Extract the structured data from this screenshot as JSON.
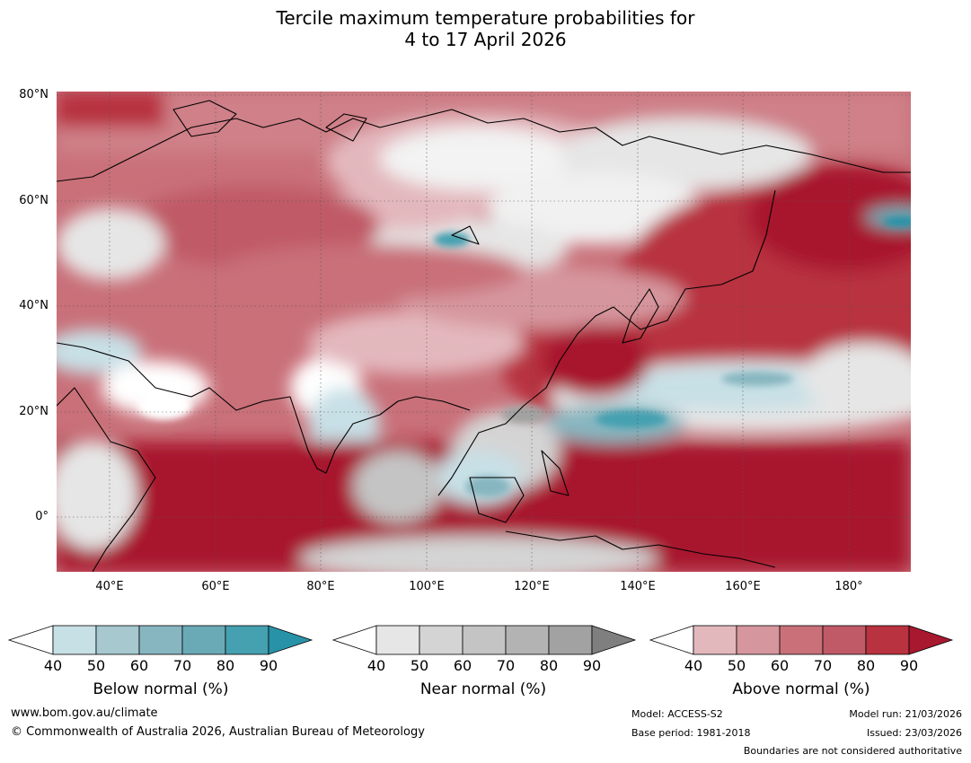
{
  "title": {
    "line1": "Tercile maximum temperature probabilities for",
    "line2": "4 to 17 April 2026"
  },
  "axes": {
    "lat_ticks": [
      "80°N",
      "60°N",
      "40°N",
      "20°N",
      "0°"
    ],
    "lon_ticks": [
      "40°E",
      "60°E",
      "80°E",
      "100°E",
      "120°E",
      "140°E",
      "160°E",
      "180°"
    ],
    "lon_range": [
      30,
      191
    ],
    "lat_range": [
      -10,
      81
    ]
  },
  "colorbars": [
    {
      "key": "below",
      "label": "Below normal (%)",
      "ticks": [
        "40",
        "50",
        "60",
        "70",
        "80",
        "90"
      ],
      "colors": [
        "#ffffff",
        "#c7e0e6",
        "#a6c8ce",
        "#87b6c0",
        "#6aaab6",
        "#45a0b0",
        "#2893a8"
      ]
    },
    {
      "key": "near",
      "label": "Near normal (%)",
      "ticks": [
        "40",
        "50",
        "60",
        "70",
        "80",
        "90"
      ],
      "colors": [
        "#ffffff",
        "#e6e6e6",
        "#d4d4d4",
        "#c4c4c4",
        "#b3b3b3",
        "#a2a2a2",
        "#7f7f7f"
      ]
    },
    {
      "key": "above",
      "label": "Above normal (%)",
      "ticks": [
        "40",
        "50",
        "60",
        "70",
        "80",
        "90"
      ],
      "colors": [
        "#ffffff",
        "#e3b8bd",
        "#d6969d",
        "#c97079",
        "#c05a66",
        "#b8323f",
        "#a8182e"
      ]
    }
  ],
  "footer": {
    "url": "www.bom.gov.au/climate",
    "copyright": "© Commonwealth of Australia 2026, Australian Bureau of Meteorology",
    "model": "Model: ACCESS-S2",
    "base_period": "Base period: 1981-2018",
    "model_run": "Model run: 21/03/2026",
    "issued": "Issued: 23/03/2026",
    "boundaries": "Boundaries are not considered authoritative"
  }
}
